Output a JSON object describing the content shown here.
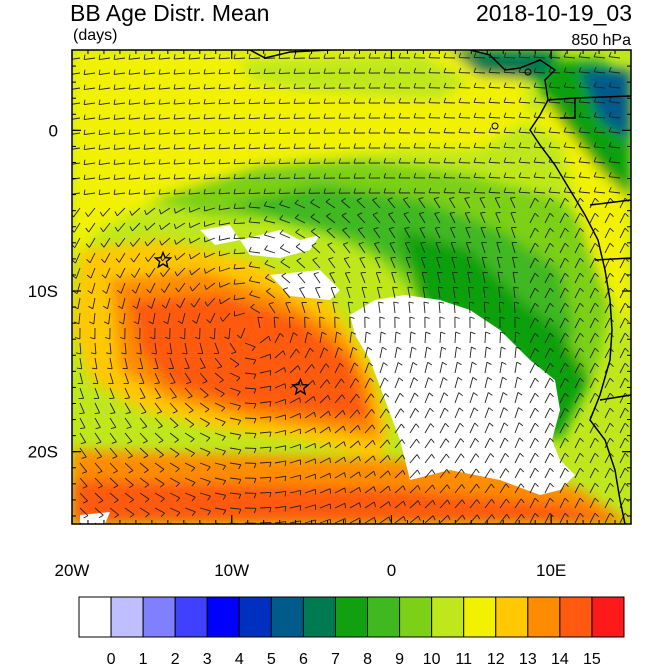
{
  "header": {
    "title": "BB Age Distr. Mean",
    "units": "(days)",
    "datetime": "2018-10-19_03",
    "level": "850 hPa"
  },
  "axes": {
    "x_ticks": [
      {
        "value": -20,
        "label": "20W"
      },
      {
        "value": -10,
        "label": "10W"
      },
      {
        "value": 0,
        "label": "0"
      },
      {
        "value": 10,
        "label": "10E"
      }
    ],
    "y_ticks": [
      {
        "value": 0,
        "label": "0"
      },
      {
        "value": -10,
        "label": "10S"
      },
      {
        "value": -20,
        "label": "20S"
      }
    ],
    "lon_range": [
      -20,
      15
    ],
    "lat_range": [
      -24.5,
      5
    ]
  },
  "colorbar": {
    "labels": [
      "0",
      "1",
      "2",
      "3",
      "4",
      "5",
      "6",
      "7",
      "8",
      "9",
      "10",
      "11",
      "12",
      "13",
      "14",
      "15"
    ],
    "colors": [
      "#ffffff",
      "#bfbfff",
      "#8080ff",
      "#4040ff",
      "#0000ff",
      "#0030c0",
      "#005a8c",
      "#007a50",
      "#10a010",
      "#40b820",
      "#7cd018",
      "#bfe81c",
      "#f2f200",
      "#ffc800",
      "#ff8c00",
      "#ff5a10",
      "#ff1a1a"
    ]
  },
  "markers": [
    {
      "name": "star-marker",
      "lon": -14.3,
      "lat": -8.1
    },
    {
      "name": "star-marker",
      "lon": -5.7,
      "lat": -16.0
    }
  ]
}
